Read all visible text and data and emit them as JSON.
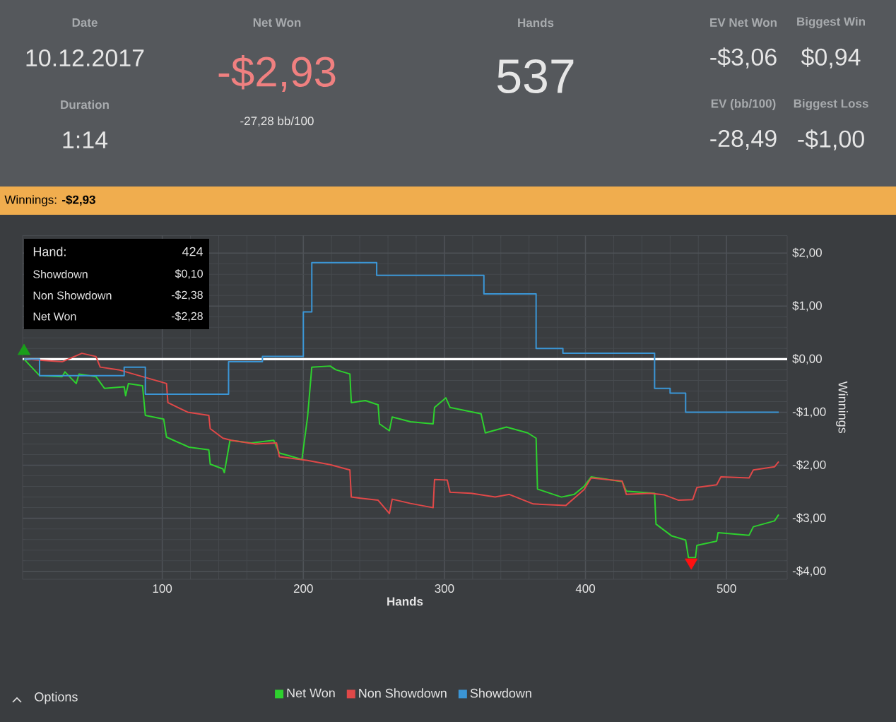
{
  "chart_data": {
    "type": "line",
    "title": "Winnings: **-$2,93**",
    "xlabel": "Hands",
    "ylabel": "Winnings",
    "xlim": [
      1,
      543
    ],
    "ylim": [
      -4.15,
      2.33
    ],
    "xticks": [
      100,
      200,
      300,
      400,
      500
    ],
    "yticks": [
      {
        "value": -4,
        "label": "-$4,00"
      },
      {
        "value": -3,
        "label": "-$3,00"
      },
      {
        "value": -2,
        "label": "-$2,00"
      },
      {
        "value": -1,
        "label": "-$1,00"
      },
      {
        "value": 0,
        "label": "$0,00"
      },
      {
        "value": 1,
        "label": "$1,00"
      },
      {
        "value": 2,
        "label": "$2,00"
      }
    ],
    "grid": true,
    "legend": "bottom",
    "ref_lines": [
      {
        "axis": "y",
        "value": 0,
        "color": "#ffffff"
      }
    ],
    "series": [
      {
        "name": "Net Won",
        "color": "#2ed12e",
        "x": [
          2,
          13,
          29,
          31,
          39,
          41,
          53,
          59,
          73,
          74,
          76,
          86,
          88,
          101,
          103,
          119,
          133,
          134,
          143,
          144,
          148,
          163,
          179,
          183,
          199,
          203,
          206,
          219,
          223,
          233,
          234,
          244,
          253,
          254,
          261,
          263,
          276,
          292,
          293,
          301,
          304,
          326,
          329,
          344,
          359,
          365,
          366,
          383,
          392,
          399,
          404,
          426,
          429,
          449,
          450,
          461,
          471,
          473,
          478,
          479,
          493,
          494,
          516,
          519,
          534,
          537
        ],
        "values": [
          0,
          -0.31,
          -0.33,
          -0.24,
          -0.46,
          -0.28,
          -0.33,
          -0.55,
          -0.52,
          -0.69,
          -0.46,
          -0.5,
          -1.06,
          -1.13,
          -1.47,
          -1.66,
          -1.71,
          -1.98,
          -2.07,
          -2.14,
          -1.53,
          -1.58,
          -1.53,
          -1.77,
          -1.89,
          -1.09,
          -0.15,
          -0.13,
          -0.2,
          -0.28,
          -0.82,
          -0.78,
          -0.86,
          -1.22,
          -1.35,
          -1.09,
          -1.18,
          -1.22,
          -0.91,
          -0.73,
          -0.91,
          -1.03,
          -1.39,
          -1.28,
          -1.39,
          -1.49,
          -2.45,
          -2.6,
          -2.55,
          -2.4,
          -2.22,
          -2.31,
          -2.49,
          -2.53,
          -3.11,
          -3.33,
          -3.41,
          -3.74,
          -3.74,
          -3.51,
          -3.43,
          -3.27,
          -3.32,
          -3.16,
          -3.05,
          -2.93
        ]
      },
      {
        "name": "Non Showdown",
        "color": "#e04848",
        "x": [
          2,
          29,
          43,
          53,
          56,
          69,
          86,
          103,
          104,
          118,
          133,
          134,
          143,
          149,
          166,
          181,
          183,
          203,
          219,
          233,
          234,
          253,
          261,
          263,
          276,
          292,
          293,
          302,
          304,
          319,
          336,
          346,
          363,
          386,
          393,
          399,
          404,
          426,
          429,
          446,
          456,
          466,
          476,
          479,
          493,
          496,
          516,
          519,
          534,
          537
        ],
        "values": [
          0,
          -0.05,
          0.11,
          0.05,
          -0.15,
          -0.2,
          -0.33,
          -0.46,
          -0.82,
          -1.0,
          -1.06,
          -1.31,
          -1.49,
          -1.53,
          -1.6,
          -1.58,
          -1.84,
          -1.91,
          -1.99,
          -2.09,
          -2.6,
          -2.66,
          -2.91,
          -2.64,
          -2.72,
          -2.8,
          -2.27,
          -2.28,
          -2.51,
          -2.53,
          -2.6,
          -2.55,
          -2.73,
          -2.76,
          -2.6,
          -2.46,
          -2.24,
          -2.3,
          -2.55,
          -2.53,
          -2.56,
          -2.66,
          -2.65,
          -2.42,
          -2.37,
          -2.22,
          -2.24,
          -2.09,
          -2.03,
          -1.93
        ]
      },
      {
        "name": "Showdown",
        "color": "#3b96d6",
        "x": [
          2,
          13,
          13,
          73,
          73,
          88,
          88,
          147,
          147,
          171,
          171,
          200,
          200,
          206,
          206,
          252,
          252,
          328,
          328,
          365,
          365,
          384,
          384,
          449,
          449,
          460,
          460,
          471,
          471,
          537
        ],
        "values": [
          0,
          0,
          -0.31,
          -0.31,
          -0.15,
          -0.15,
          -0.66,
          -0.66,
          -0.05,
          -0.05,
          0.05,
          0.05,
          0.89,
          0.89,
          1.82,
          1.82,
          1.58,
          1.58,
          1.23,
          1.23,
          0.2,
          0.2,
          0.11,
          0.11,
          -0.55,
          -0.55,
          -0.64,
          -0.64,
          -1.0,
          -1.0
        ]
      },
      {
        "type": "scatter",
        "marker": "triangle",
        "color": "#1a9e1a",
        "x": [
          2
        ],
        "values": [
          0.15
        ]
      },
      {
        "type": "scatter",
        "marker": "triangle-down",
        "color": "#ff1010",
        "x": [
          475
        ],
        "values": [
          -3.83
        ]
      }
    ],
    "annotations": [
      "Date",
      "10.12.2017",
      "Duration",
      "1:14",
      "Net Won",
      "-$2,93",
      "-27,28 bb/100",
      "Hands",
      "537",
      "EV Net Won",
      "-$3,06",
      "Biggest Win",
      "$0,94",
      "EV (bb/100)",
      "-28,49",
      "Biggest Loss",
      "-$1,00",
      "Hand:",
      "424",
      "Showdown",
      "$0,10",
      "Non Showdown",
      "-$2,38",
      "Net Won",
      "-$2,28",
      "Options"
    ]
  }
}
